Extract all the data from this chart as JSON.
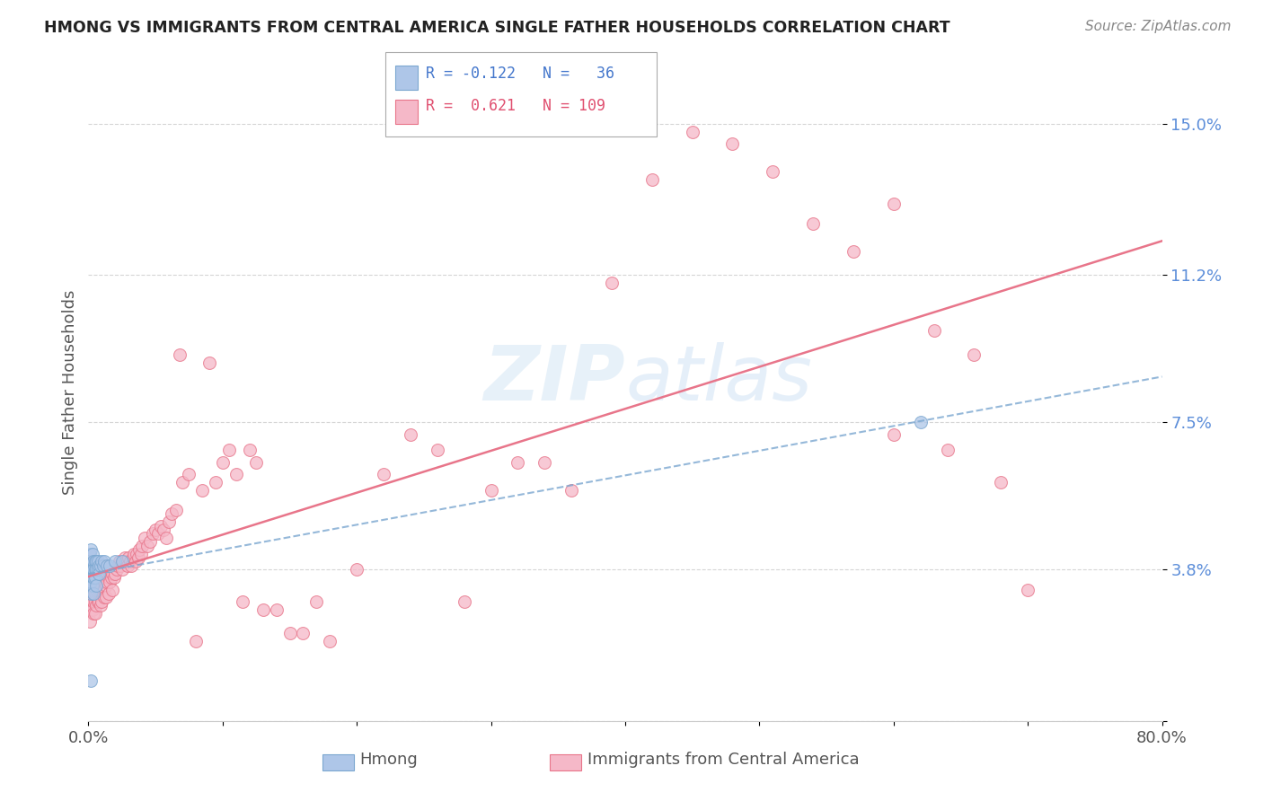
{
  "title": "HMONG VS IMMIGRANTS FROM CENTRAL AMERICA SINGLE FATHER HOUSEHOLDS CORRELATION CHART",
  "source": "Source: ZipAtlas.com",
  "ylabel": "Single Father Households",
  "xlim": [
    0.0,
    0.8
  ],
  "ylim": [
    0.0,
    0.165
  ],
  "yticks": [
    0.0,
    0.038,
    0.075,
    0.112,
    0.15
  ],
  "ytick_labels": [
    "",
    "3.8%",
    "7.5%",
    "11.2%",
    "15.0%"
  ],
  "xticks": [
    0.0,
    0.1,
    0.2,
    0.3,
    0.4,
    0.5,
    0.6,
    0.7,
    0.8
  ],
  "xtick_labels": [
    "0.0%",
    "",
    "",
    "",
    "",
    "",
    "",
    "",
    "80.0%"
  ],
  "grid_color": "#cccccc",
  "background_color": "#ffffff",
  "hmong_color": "#aec6e8",
  "ca_color": "#f5b8c8",
  "hmong_edge_color": "#7ba7d0",
  "ca_edge_color": "#e8758a",
  "ca_line_color": "#e8758a",
  "hmong_line_color": "#7ba7d0",
  "legend_R_hmong": "-0.122",
  "legend_N_hmong": "36",
  "legend_R_ca": "0.621",
  "legend_N_ca": "109",
  "hmong_x": [
    0.001,
    0.001,
    0.001,
    0.002,
    0.002,
    0.002,
    0.002,
    0.003,
    0.003,
    0.003,
    0.003,
    0.003,
    0.004,
    0.004,
    0.004,
    0.004,
    0.005,
    0.005,
    0.005,
    0.006,
    0.006,
    0.006,
    0.007,
    0.007,
    0.008,
    0.008,
    0.009,
    0.01,
    0.011,
    0.012,
    0.014,
    0.016,
    0.02,
    0.025,
    0.62,
    0.002
  ],
  "hmong_y": [
    0.038,
    0.042,
    0.035,
    0.043,
    0.038,
    0.035,
    0.032,
    0.04,
    0.038,
    0.042,
    0.036,
    0.034,
    0.04,
    0.038,
    0.036,
    0.032,
    0.04,
    0.038,
    0.036,
    0.04,
    0.038,
    0.034,
    0.04,
    0.038,
    0.039,
    0.037,
    0.039,
    0.04,
    0.039,
    0.04,
    0.039,
    0.039,
    0.04,
    0.04,
    0.075,
    0.01
  ],
  "ca_x": [
    0.001,
    0.002,
    0.002,
    0.003,
    0.003,
    0.004,
    0.004,
    0.004,
    0.005,
    0.005,
    0.005,
    0.006,
    0.006,
    0.007,
    0.007,
    0.008,
    0.008,
    0.009,
    0.009,
    0.01,
    0.01,
    0.011,
    0.012,
    0.012,
    0.013,
    0.013,
    0.014,
    0.015,
    0.015,
    0.016,
    0.017,
    0.018,
    0.018,
    0.019,
    0.02,
    0.021,
    0.022,
    0.023,
    0.024,
    0.025,
    0.026,
    0.027,
    0.028,
    0.029,
    0.03,
    0.031,
    0.032,
    0.033,
    0.034,
    0.035,
    0.036,
    0.037,
    0.038,
    0.039,
    0.04,
    0.042,
    0.044,
    0.046,
    0.048,
    0.05,
    0.052,
    0.054,
    0.056,
    0.058,
    0.06,
    0.062,
    0.065,
    0.068,
    0.07,
    0.075,
    0.08,
    0.085,
    0.09,
    0.095,
    0.1,
    0.105,
    0.11,
    0.115,
    0.12,
    0.125,
    0.13,
    0.14,
    0.15,
    0.16,
    0.17,
    0.18,
    0.2,
    0.22,
    0.24,
    0.26,
    0.28,
    0.3,
    0.32,
    0.34,
    0.36,
    0.39,
    0.42,
    0.45,
    0.48,
    0.51,
    0.54,
    0.57,
    0.6,
    0.63,
    0.66,
    0.6,
    0.64,
    0.68,
    0.7
  ],
  "ca_y": [
    0.025,
    0.03,
    0.028,
    0.032,
    0.028,
    0.033,
    0.03,
    0.027,
    0.032,
    0.03,
    0.027,
    0.033,
    0.029,
    0.034,
    0.03,
    0.033,
    0.03,
    0.033,
    0.029,
    0.034,
    0.03,
    0.033,
    0.035,
    0.031,
    0.034,
    0.031,
    0.035,
    0.036,
    0.032,
    0.035,
    0.036,
    0.037,
    0.033,
    0.036,
    0.037,
    0.038,
    0.039,
    0.04,
    0.039,
    0.038,
    0.04,
    0.041,
    0.04,
    0.039,
    0.041,
    0.04,
    0.039,
    0.041,
    0.042,
    0.04,
    0.042,
    0.041,
    0.043,
    0.042,
    0.044,
    0.046,
    0.044,
    0.045,
    0.047,
    0.048,
    0.047,
    0.049,
    0.048,
    0.046,
    0.05,
    0.052,
    0.053,
    0.092,
    0.06,
    0.062,
    0.02,
    0.058,
    0.09,
    0.06,
    0.065,
    0.068,
    0.062,
    0.03,
    0.068,
    0.065,
    0.028,
    0.028,
    0.022,
    0.022,
    0.03,
    0.02,
    0.038,
    0.062,
    0.072,
    0.068,
    0.03,
    0.058,
    0.065,
    0.065,
    0.058,
    0.11,
    0.136,
    0.148,
    0.145,
    0.138,
    0.125,
    0.118,
    0.13,
    0.098,
    0.092,
    0.072,
    0.068,
    0.06,
    0.033
  ]
}
